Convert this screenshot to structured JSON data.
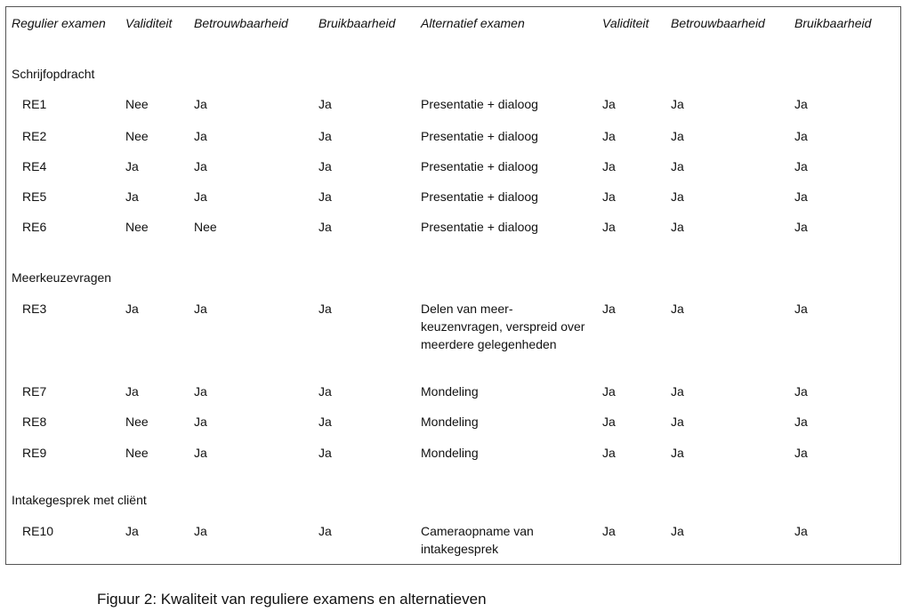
{
  "headers": [
    "Regulier examen",
    "Validiteit",
    "Betrouwbaarheid",
    "Bruikbaarheid",
    "Alternatief examen",
    "Validiteit",
    "Betrouwbaarheid",
    "Bruikbaarheid"
  ],
  "sections": [
    {
      "title": "Schrijfopdracht",
      "rows": [
        {
          "exam": "RE1",
          "v": "Nee",
          "b": "Ja",
          "u": "Ja",
          "alt": "Presentatie + dialoog",
          "av": "Ja",
          "ab": "Ja",
          "au": "Ja"
        },
        {
          "exam": "RE2",
          "v": "Nee",
          "b": "Ja",
          "u": "Ja",
          "alt": "Presentatie + dialoog",
          "av": "Ja",
          "ab": "Ja",
          "au": "Ja"
        },
        {
          "exam": "RE4",
          "v": "Ja",
          "b": "Ja",
          "u": "Ja",
          "alt": "Presentatie + dialoog",
          "av": "Ja",
          "ab": "Ja",
          "au": "Ja"
        },
        {
          "exam": "RE5",
          "v": "Ja",
          "b": "Ja",
          "u": "Ja",
          "alt": "Presentatie + dialoog",
          "av": "Ja",
          "ab": "Ja",
          "au": "Ja"
        },
        {
          "exam": "RE6",
          "v": "Nee",
          "b": "Nee",
          "u": "Ja",
          "alt": "Presentatie + dialoog",
          "av": "Ja",
          "ab": "Ja",
          "au": "Ja"
        }
      ]
    },
    {
      "title": "Meerkeuzevragen",
      "rows": [
        {
          "exam": "RE3",
          "v": "Ja",
          "b": "Ja",
          "u": "Ja",
          "alt": "Delen van meer-keuzenvragen, verspreid over meerdere gelegenheden",
          "av": "Ja",
          "ab": "Ja",
          "au": "Ja"
        },
        {
          "exam": "RE7",
          "v": "Ja",
          "b": "Ja",
          "u": "Ja",
          "alt": "Mondeling",
          "av": "Ja",
          "ab": "Ja",
          "au": "Ja"
        },
        {
          "exam": "RE8",
          "v": "Nee",
          "b": "Ja",
          "u": "Ja",
          "alt": "Mondeling",
          "av": "Ja",
          "ab": "Ja",
          "au": "Ja"
        },
        {
          "exam": "RE9",
          "v": "Nee",
          "b": "Ja",
          "u": "Ja",
          "alt": "Mondeling",
          "av": "Ja",
          "ab": "Ja",
          "au": "Ja"
        }
      ]
    },
    {
      "title": "Intakegesprek met cliënt",
      "rows": [
        {
          "exam": "RE10",
          "v": "Ja",
          "b": "Ja",
          "u": "Ja",
          "alt": "Cameraopname van intakegesprek",
          "av": "Ja",
          "ab": "Ja",
          "au": "Ja"
        }
      ]
    }
  ],
  "caption": "Figuur 2: Kwaliteit van reguliere examens en alternatieven"
}
